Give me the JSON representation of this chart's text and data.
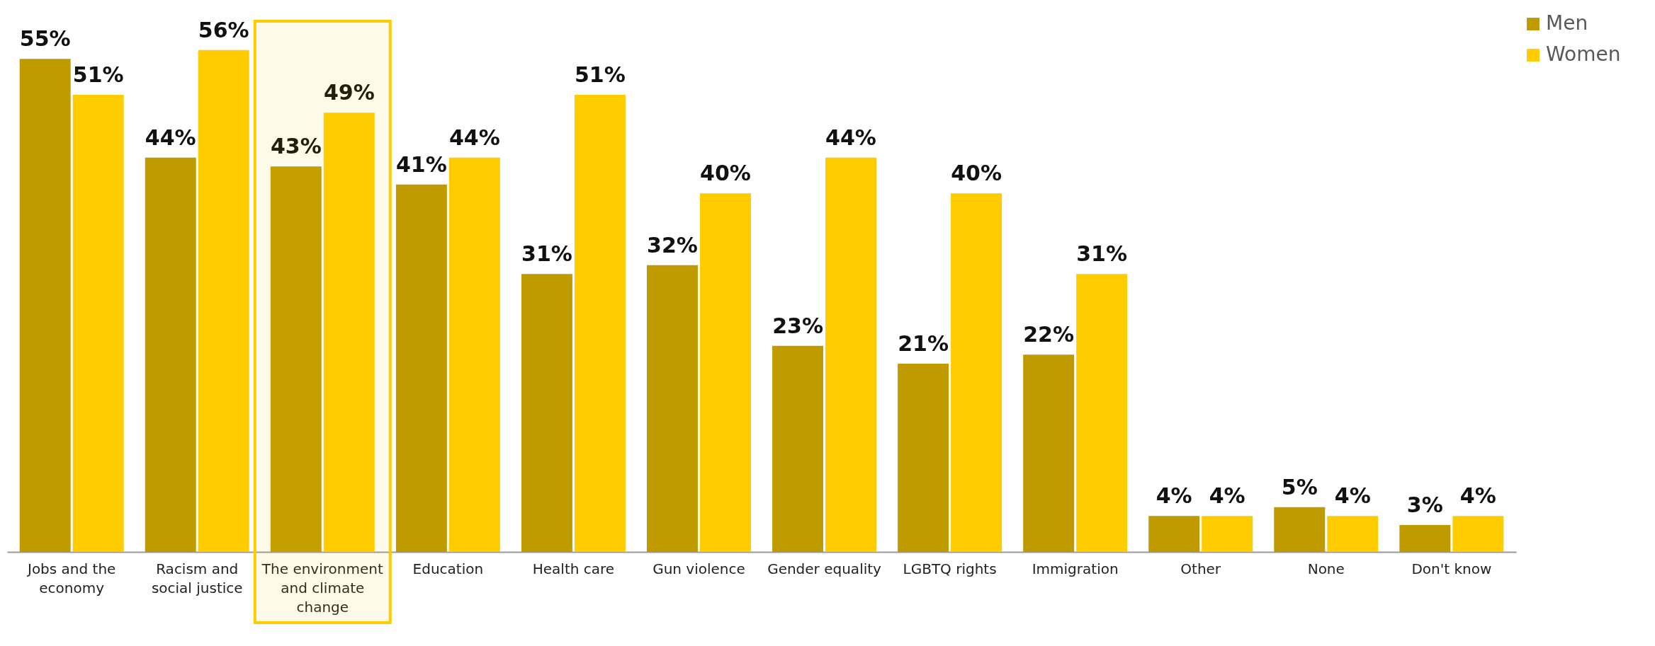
{
  "chart_data": {
    "type": "bar",
    "categories": [
      "Jobs and the economy",
      "Racism and social justice",
      "The environment and climate change",
      "Education",
      "Health care",
      "Gun violence",
      "Gender equality",
      "LGBTQ rights",
      "Immigration",
      "Other",
      "None",
      "Don't know"
    ],
    "series": [
      {
        "name": "Men",
        "color": "#c09b00",
        "values": [
          55,
          44,
          43,
          41,
          31,
          32,
          23,
          21,
          22,
          4,
          5,
          3
        ],
        "value_labels": [
          "55%",
          "44%",
          "43%",
          "41%",
          "31%",
          "32%",
          "23%",
          "21%",
          "22%",
          "4%",
          "5%",
          "3%"
        ]
      },
      {
        "name": "Women",
        "color": "#ffcc00",
        "values": [
          51,
          56,
          49,
          44,
          51,
          40,
          44,
          40,
          31,
          4,
          4,
          4
        ],
        "value_labels": [
          "51%",
          "56%",
          "49%",
          "44%",
          "51%",
          "40%",
          "44%",
          "40%",
          "31%",
          "4%",
          "4%",
          "4%"
        ]
      }
    ],
    "bands": [
      {
        "axis": "x",
        "from": "The environment and climate change",
        "to": "The environment and climate change",
        "color": "#ffcc00"
      }
    ],
    "legend": "right",
    "grid": false
  }
}
